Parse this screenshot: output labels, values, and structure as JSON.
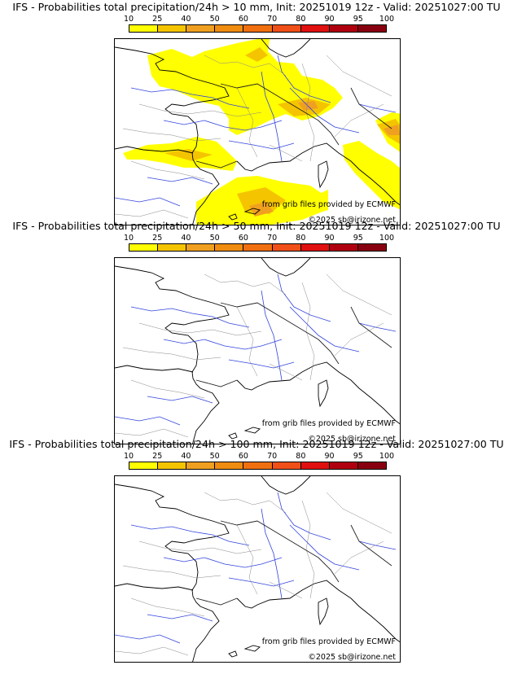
{
  "scale": {
    "labels": [
      "10",
      "25",
      "40",
      "50",
      "60",
      "70",
      "80",
      "90",
      "95",
      "100"
    ],
    "colors": [
      "#ffff00",
      "#f5c400",
      "#f0a020",
      "#f08c10",
      "#f07010",
      "#f05018",
      "#e01010",
      "#b00010",
      "#880010"
    ]
  },
  "panels": [
    {
      "title": "IFS - Probabilities total precipitation/24h > 10 mm, Init: 20251019 12z - Valid: 20251027:00 TU",
      "credit_source": "from grib files provided by ECMWF",
      "credit_copyright": "©2025 sb@irizone.net",
      "has_shading": true
    },
    {
      "title": "IFS - Probabilities total precipitation/24h > 50 mm, Init: 20251019 12z - Valid: 20251027:00 TU",
      "credit_source": "from grib files provided by ECMWF",
      "credit_copyright": "©2025 sb@irizone.net",
      "has_shading": false
    },
    {
      "title": "IFS - Probabilities total precipitation/24h > 100 mm, Init: 20251019 12z - Valid: 20251027:00 TU",
      "credit_source": "from grib files provided by ECMWF",
      "credit_copyright": "©2025 sb@irizone.net",
      "has_shading": false
    }
  ]
}
